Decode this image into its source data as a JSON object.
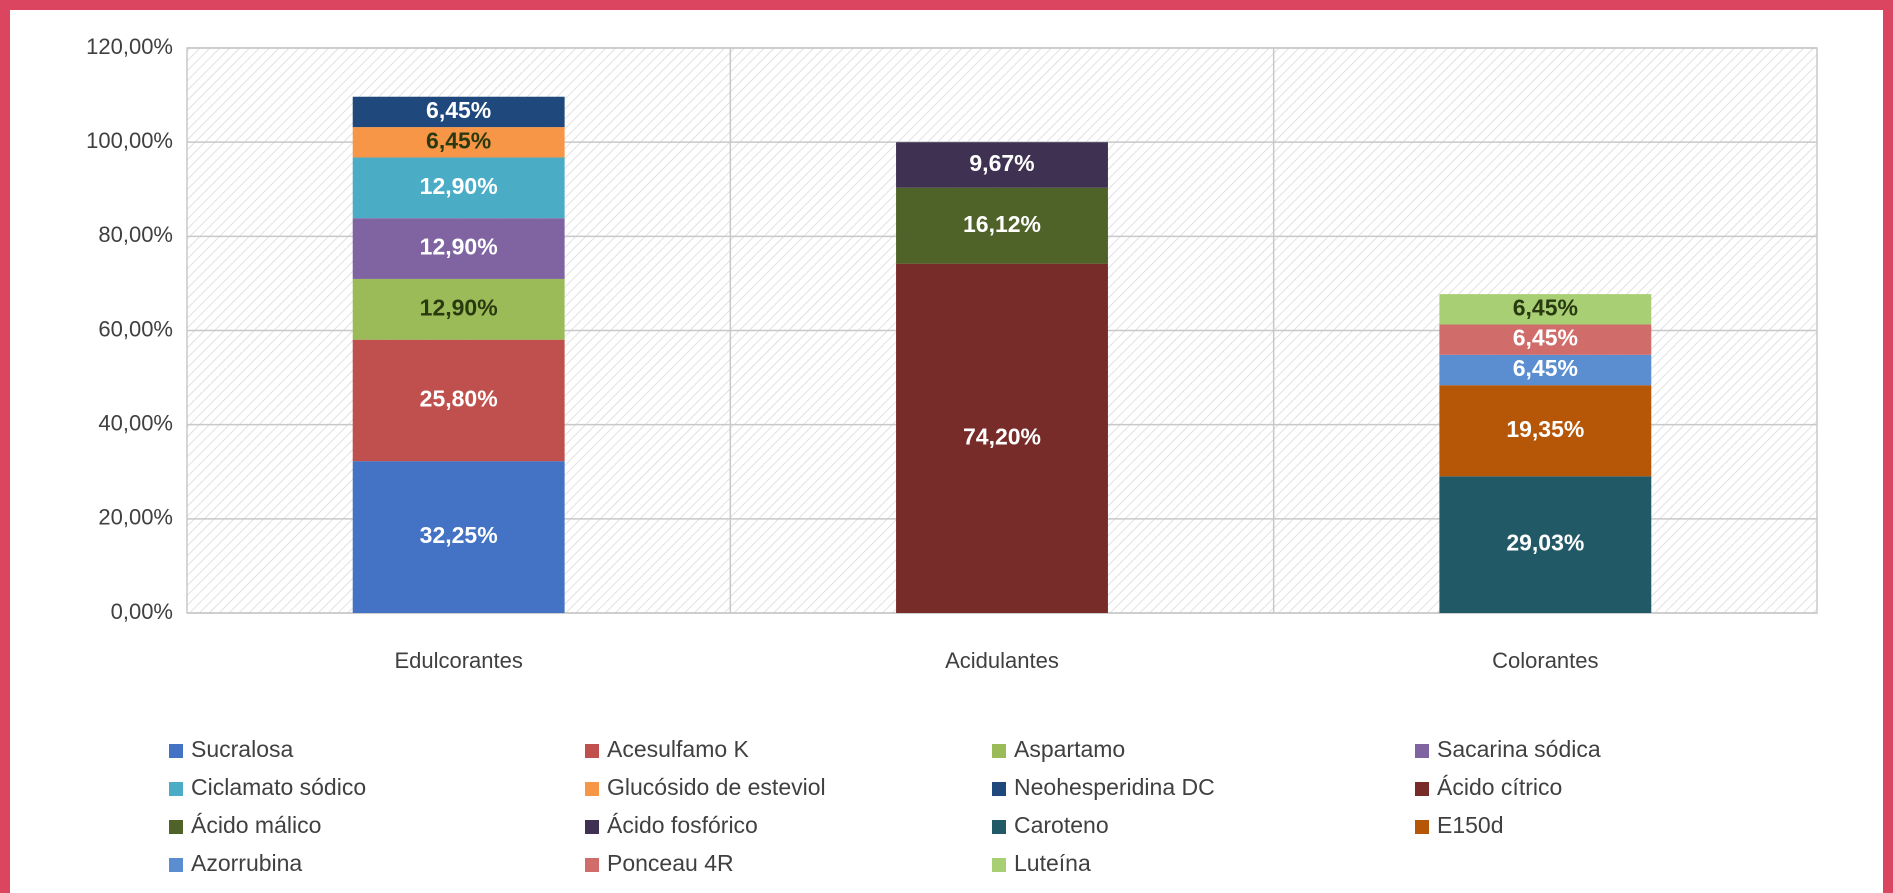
{
  "chart_data": {
    "type": "stacked_bar",
    "categories": [
      "Edulcorantes",
      "Acidulantes",
      "Colorantes"
    ],
    "ylim": [
      0,
      120
    ],
    "yticks": [
      {
        "value": 0,
        "label": "0,00%"
      },
      {
        "value": 20,
        "label": "20,00%"
      },
      {
        "value": 40,
        "label": "40,00%"
      },
      {
        "value": 60,
        "label": "60,00%"
      },
      {
        "value": 80,
        "label": "80,00%"
      },
      {
        "value": 100,
        "label": "100,00%"
      },
      {
        "value": 120,
        "label": "120,00%"
      }
    ],
    "grid": true,
    "legend": "bottom",
    "series": [
      {
        "name": "Sucralosa",
        "color": "#4472c4",
        "values": [
          32.25,
          null,
          null
        ],
        "value_labels": [
          "32,25%",
          null,
          null
        ]
      },
      {
        "name": "Acesulfamo K",
        "color": "#c0504d",
        "values": [
          25.8,
          null,
          null
        ],
        "value_labels": [
          "25,80%",
          null,
          null
        ]
      },
      {
        "name": "Aspartamo",
        "color": "#9bbb59",
        "values": [
          12.9,
          null,
          null
        ],
        "value_labels": [
          "12,90%",
          null,
          null
        ]
      },
      {
        "name": "Sacarina sódica",
        "color": "#8064a2",
        "values": [
          12.9,
          null,
          null
        ],
        "value_labels": [
          "12,90%",
          null,
          null
        ]
      },
      {
        "name": "Ciclamato sódico",
        "color": "#4bacc6",
        "values": [
          12.9,
          null,
          null
        ],
        "value_labels": [
          "12,90%",
          null,
          null
        ]
      },
      {
        "name": "Glucósido de esteviol",
        "color": "#f79646",
        "values": [
          6.45,
          null,
          null
        ],
        "value_labels": [
          "6,45%",
          null,
          null
        ]
      },
      {
        "name": "Neohesperidina DC",
        "color": "#1f497d",
        "values": [
          6.45,
          null,
          null
        ],
        "value_labels": [
          "6,45%",
          null,
          null
        ]
      },
      {
        "name": "Ácido cítrico",
        "color": "#772c2a",
        "values": [
          null,
          74.2,
          null
        ],
        "value_labels": [
          null,
          "74,20%",
          null
        ]
      },
      {
        "name": "Ácido málico",
        "color": "#4f6228",
        "values": [
          null,
          16.12,
          null
        ],
        "value_labels": [
          null,
          "16,12%",
          null
        ]
      },
      {
        "name": "Ácido fosfórico",
        "color": "#3f3151",
        "values": [
          null,
          9.67,
          null
        ],
        "value_labels": [
          null,
          "9,67%",
          null
        ]
      },
      {
        "name": "Caroteno",
        "color": "#215967",
        "values": [
          null,
          null,
          29.03
        ],
        "value_labels": [
          null,
          null,
          "29,03%"
        ]
      },
      {
        "name": "E150d",
        "color": "#b65708",
        "values": [
          null,
          null,
          19.35
        ],
        "value_labels": [
          null,
          null,
          "19,35%"
        ]
      },
      {
        "name": "Azorrubina",
        "color": "#5a8ed0",
        "values": [
          null,
          null,
          6.45
        ],
        "value_labels": [
          null,
          null,
          "6,45%"
        ]
      },
      {
        "name": "Ponceau 4R",
        "color": "#d06c6a",
        "values": [
          null,
          null,
          6.45
        ],
        "value_labels": [
          null,
          null,
          "6,45%"
        ]
      },
      {
        "name": "Luteína",
        "color": "#a9cf75",
        "values": [
          null,
          null,
          6.45
        ],
        "value_labels": [
          null,
          null,
          "6,45%"
        ]
      }
    ]
  }
}
